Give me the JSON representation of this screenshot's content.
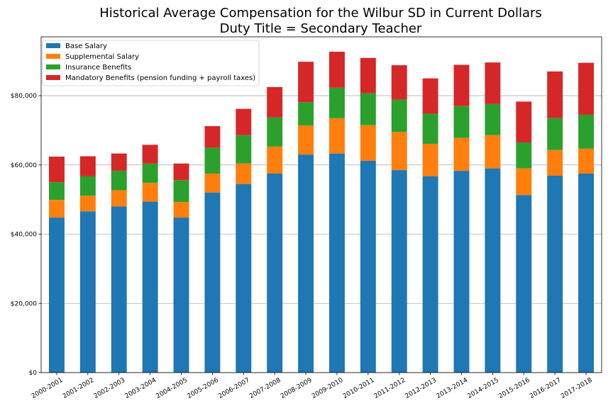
{
  "chart_data": {
    "type": "bar",
    "stacked": true,
    "title_lines": [
      "Historical Average Compensation for the Wilbur SD in Current Dollars",
      "Duty Title = Secondary Teacher"
    ],
    "xlabel": "",
    "ylabel": "",
    "ylim": [
      0,
      97000
    ],
    "yticks": [
      0,
      20000,
      40000,
      60000,
      80000
    ],
    "ytick_labels": [
      "$0",
      "$20,000",
      "$40,000",
      "$60,000",
      "$80,000"
    ],
    "grid": "y",
    "legend_position": "top-left",
    "categories": [
      "2000-2001",
      "2001-2002",
      "2002-2003",
      "2003-2004",
      "2004-2005",
      "2005-2006",
      "2006-2007",
      "2007-2008",
      "2008-2009",
      "2009-2010",
      "2010-2011",
      "2011-2012",
      "2012-2013",
      "2013-2014",
      "2014-2015",
      "2015-2016",
      "2016-2017",
      "2017-2018"
    ],
    "series": [
      {
        "name": "Base Salary",
        "color": "#1f77b4",
        "values": [
          44800,
          46600,
          48000,
          49400,
          44800,
          52000,
          54500,
          57500,
          63000,
          63300,
          61200,
          58500,
          56700,
          58300,
          59000,
          51300,
          56900,
          57500
        ]
      },
      {
        "name": "Supplemental Salary",
        "color": "#ff7f0e",
        "values": [
          5100,
          4500,
          4700,
          5400,
          4500,
          5500,
          5900,
          7800,
          8400,
          10200,
          10300,
          11000,
          9400,
          9500,
          9600,
          7700,
          7400,
          7200
        ]
      },
      {
        "name": "Insurance Benefits",
        "color": "#2ca02c",
        "values": [
          5100,
          5600,
          5600,
          5600,
          6300,
          7500,
          8200,
          8400,
          6700,
          8800,
          9200,
          9400,
          8700,
          9200,
          9000,
          7500,
          9200,
          9800
        ]
      },
      {
        "name": "Mandatory Benefits (pension funding + payroll taxes)",
        "color": "#d62728",
        "values": [
          7400,
          5800,
          5000,
          5400,
          4800,
          6200,
          7600,
          8800,
          11700,
          10400,
          10200,
          9900,
          10200,
          11900,
          12000,
          11800,
          13500,
          15000
        ]
      }
    ]
  }
}
